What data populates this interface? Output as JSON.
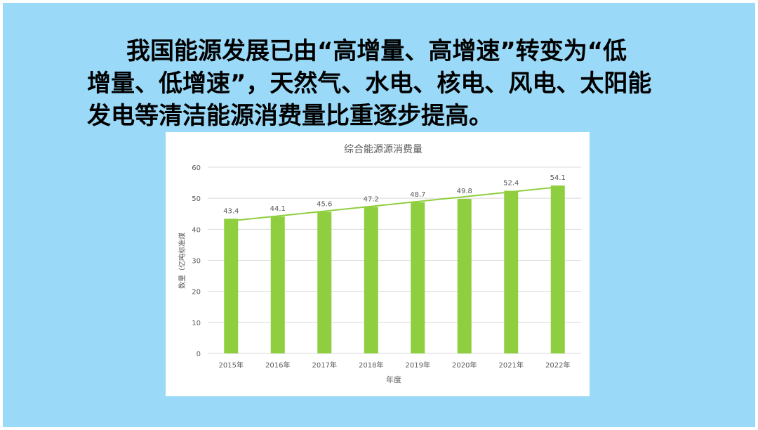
{
  "heading": {
    "lines": [
      "我国能源发展已由“高增量、高增速”转变为“低",
      "增量、低增速”，天然气、水电、核电、风电、太阳能",
      "发电等清洁能源消费量比重逐步提高。"
    ]
  },
  "colors": {
    "slide_background": "#9ad9f7",
    "bar": "#8fce3e",
    "trendline": "#8fce3e",
    "gridline": "#d9d9d9",
    "axis_text": "#595959"
  },
  "chart_data": {
    "type": "bar",
    "title": "综合能源源消费量",
    "xlabel": "年度",
    "ylabel": "数量（亿吨标准煤",
    "categories": [
      "2015年",
      "2016年",
      "2017年",
      "2018年",
      "2019年",
      "2020年",
      "2021年",
      "2022年"
    ],
    "values": [
      43.4,
      44.1,
      45.6,
      47.2,
      48.7,
      49.8,
      52.4,
      54.1
    ],
    "data_labels": [
      "43.4",
      "44.1",
      "45.6",
      "47.2",
      "48.7",
      "49.8",
      "52.4",
      "54.1"
    ],
    "ylim": [
      0,
      60
    ],
    "yticks": [
      0,
      10,
      20,
      30,
      40,
      50,
      60
    ],
    "ytick_labels": [
      "0",
      "10",
      "20",
      "30",
      "40",
      "50",
      "60"
    ],
    "grid": true,
    "trendline": "linear"
  }
}
